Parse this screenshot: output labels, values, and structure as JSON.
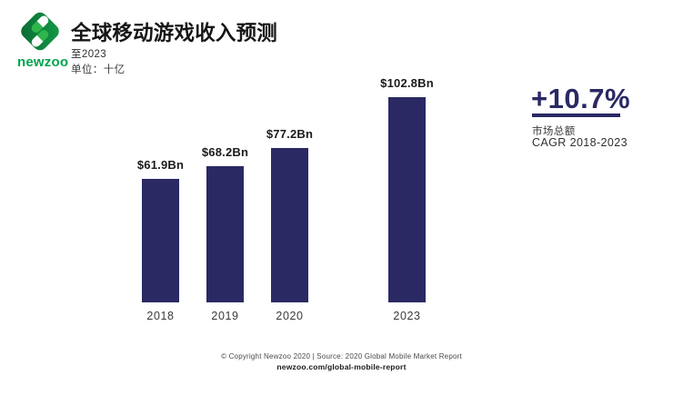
{
  "logo": {
    "wordmark": "newzoo"
  },
  "header": {
    "title": "全球移动游戏收入预测",
    "subtitle": "至2023",
    "unit": "单位：十亿"
  },
  "chart_data": {
    "type": "bar",
    "title": "全球移动游戏收入预测",
    "subtitle": "至2023",
    "unit_label": "单位：十亿",
    "categories": [
      "2018",
      "2019",
      "2020",
      "2023"
    ],
    "values": [
      61.9,
      68.2,
      77.2,
      102.8
    ],
    "value_labels": [
      "$61.9Bn",
      "$68.2Bn",
      "$77.2Bn",
      "$102.8Bn"
    ],
    "ylim": [
      0,
      110
    ],
    "grid": false,
    "legend": false,
    "bar_color": "#2a2963"
  },
  "annotation": {
    "value": "+10.7%",
    "line1": "市场总额",
    "line2": "CAGR 2018-2023",
    "accent_color": "#2a2963"
  },
  "footer": {
    "copyright": "© Copyright Newzoo 2020 | Source: 2020 Global Mobile Market Report",
    "link": "newzoo.com/global-mobile-report"
  }
}
